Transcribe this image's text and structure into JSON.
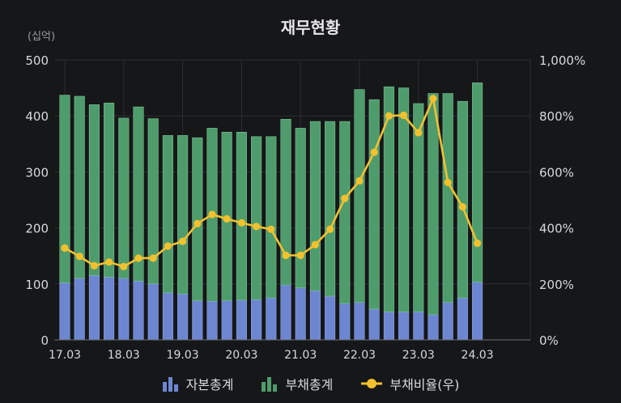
{
  "chart_data": {
    "type": "bar",
    "title": "재무현황",
    "unit_label": "(십억)",
    "left_axis": {
      "ylim": [
        0,
        500
      ],
      "ticks": [
        "0",
        "100",
        "200",
        "300",
        "400",
        "500"
      ]
    },
    "right_axis": {
      "ylim": [
        0,
        1000
      ],
      "ticks": [
        "0%",
        "200%",
        "400%",
        "600%",
        "800%",
        "1,000%"
      ]
    },
    "x_tick_labels": [
      "17.03",
      "18.03",
      "19.03",
      "20.03",
      "21.03",
      "22.03",
      "23.03",
      "24.03"
    ],
    "x_tick_indices": [
      0,
      4,
      8,
      12,
      16,
      20,
      24,
      28
    ],
    "grid": true,
    "legend_position": "bottom",
    "stacked": true,
    "series": [
      {
        "name": "자본총계",
        "type": "bar",
        "axis": "left",
        "color": "#6d86d1",
        "values": [
          102,
          110,
          115,
          112,
          110,
          105,
          100,
          84,
          82,
          70,
          69,
          70,
          71,
          72,
          75,
          98,
          93,
          88,
          78,
          65,
          67,
          55,
          50,
          50,
          50,
          45,
          67,
          75,
          103
        ]
      },
      {
        "name": "부채총계",
        "type": "bar",
        "axis": "left",
        "color": "#4e9c6c",
        "values": [
          335,
          325,
          305,
          311,
          286,
          311,
          295,
          281,
          283,
          291,
          309,
          301,
          300,
          291,
          288,
          296,
          285,
          302,
          312,
          325,
          380,
          374,
          402,
          400,
          372,
          395,
          373,
          351,
          356
        ]
      },
      {
        "name": "부채비율(우)",
        "type": "line",
        "axis": "right",
        "color": "#f2c12e",
        "values": [
          328,
          298,
          265,
          278,
          262,
          292,
          292,
          335,
          352,
          415,
          448,
          432,
          418,
          405,
          395,
          302,
          302,
          340,
          395,
          505,
          568,
          670,
          800,
          802,
          740,
          862,
          562,
          475,
          345
        ]
      }
    ]
  }
}
